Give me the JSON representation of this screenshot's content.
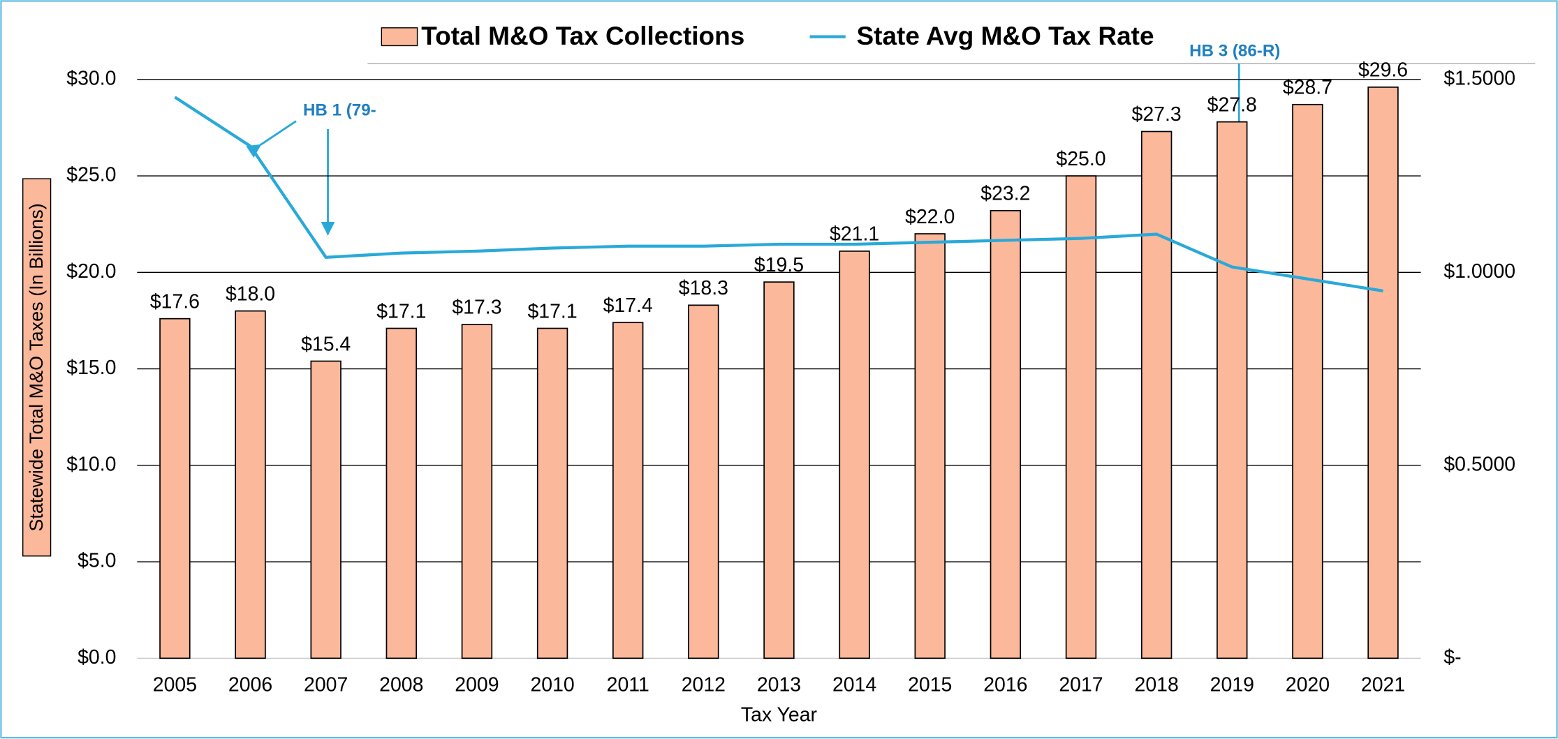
{
  "chart_data": {
    "type": "bar",
    "x_label": "Tax Year",
    "y_label": "Statewide Total M&O Taxes (In Billions)",
    "categories": [
      "2005",
      "2006",
      "2007",
      "2008",
      "2009",
      "2010",
      "2011",
      "2012",
      "2013",
      "2014",
      "2015",
      "2016",
      "2017",
      "2018",
      "2019",
      "2020",
      "2021"
    ],
    "series": [
      {
        "name": "Total M&O Tax Collections",
        "type": "bar",
        "color": "#fcb89b",
        "values": [
          17.6,
          18.0,
          15.4,
          17.1,
          17.3,
          17.1,
          17.4,
          18.3,
          19.5,
          21.1,
          22.0,
          23.2,
          25.0,
          27.3,
          27.8,
          28.7,
          29.6
        ],
        "value_labels": [
          "$17.6",
          "$18.0",
          "$15.4",
          "$17.1",
          "$17.3",
          "$17.1",
          "$17.4",
          "$18.3",
          "$19.5",
          "$21.1",
          "$22.0",
          "$23.2",
          "$25.0",
          "$27.3",
          "$27.8",
          "$28.7",
          "$29.6"
        ]
      },
      {
        "name": "State Avg M&O Tax Rate",
        "type": "line",
        "axis": "y2",
        "color": "#2aa9d9",
        "values": [
          1.454,
          1.327,
          1.039,
          1.05,
          1.055,
          1.063,
          1.068,
          1.068,
          1.073,
          1.073,
          1.078,
          1.083,
          1.088,
          1.099,
          1.014,
          0.983,
          0.952
        ]
      }
    ],
    "ylim": [
      0,
      30
    ],
    "yticks": [
      {
        "value": 0,
        "label": "$0.0"
      },
      {
        "value": 5,
        "label": "$5.0"
      },
      {
        "value": 10,
        "label": "$10.0"
      },
      {
        "value": 15,
        "label": "$15.0"
      },
      {
        "value": 20,
        "label": "$20.0"
      },
      {
        "value": 25,
        "label": "$25.0"
      },
      {
        "value": 30,
        "label": "$30.0"
      }
    ],
    "y2lim": [
      0,
      1.5
    ],
    "y2ticks": [
      {
        "value": 0,
        "label": "$-"
      },
      {
        "value": 0.5,
        "label": "$0.5000"
      },
      {
        "value": 1,
        "label": "$1.0000"
      },
      {
        "value": 1.5,
        "label": "$1.5000"
      }
    ],
    "grid": true,
    "legend": "top",
    "annotations": [
      {
        "text": "HB 1 (79-"
      },
      {
        "text": "HB 3 (86-R)"
      }
    ]
  }
}
